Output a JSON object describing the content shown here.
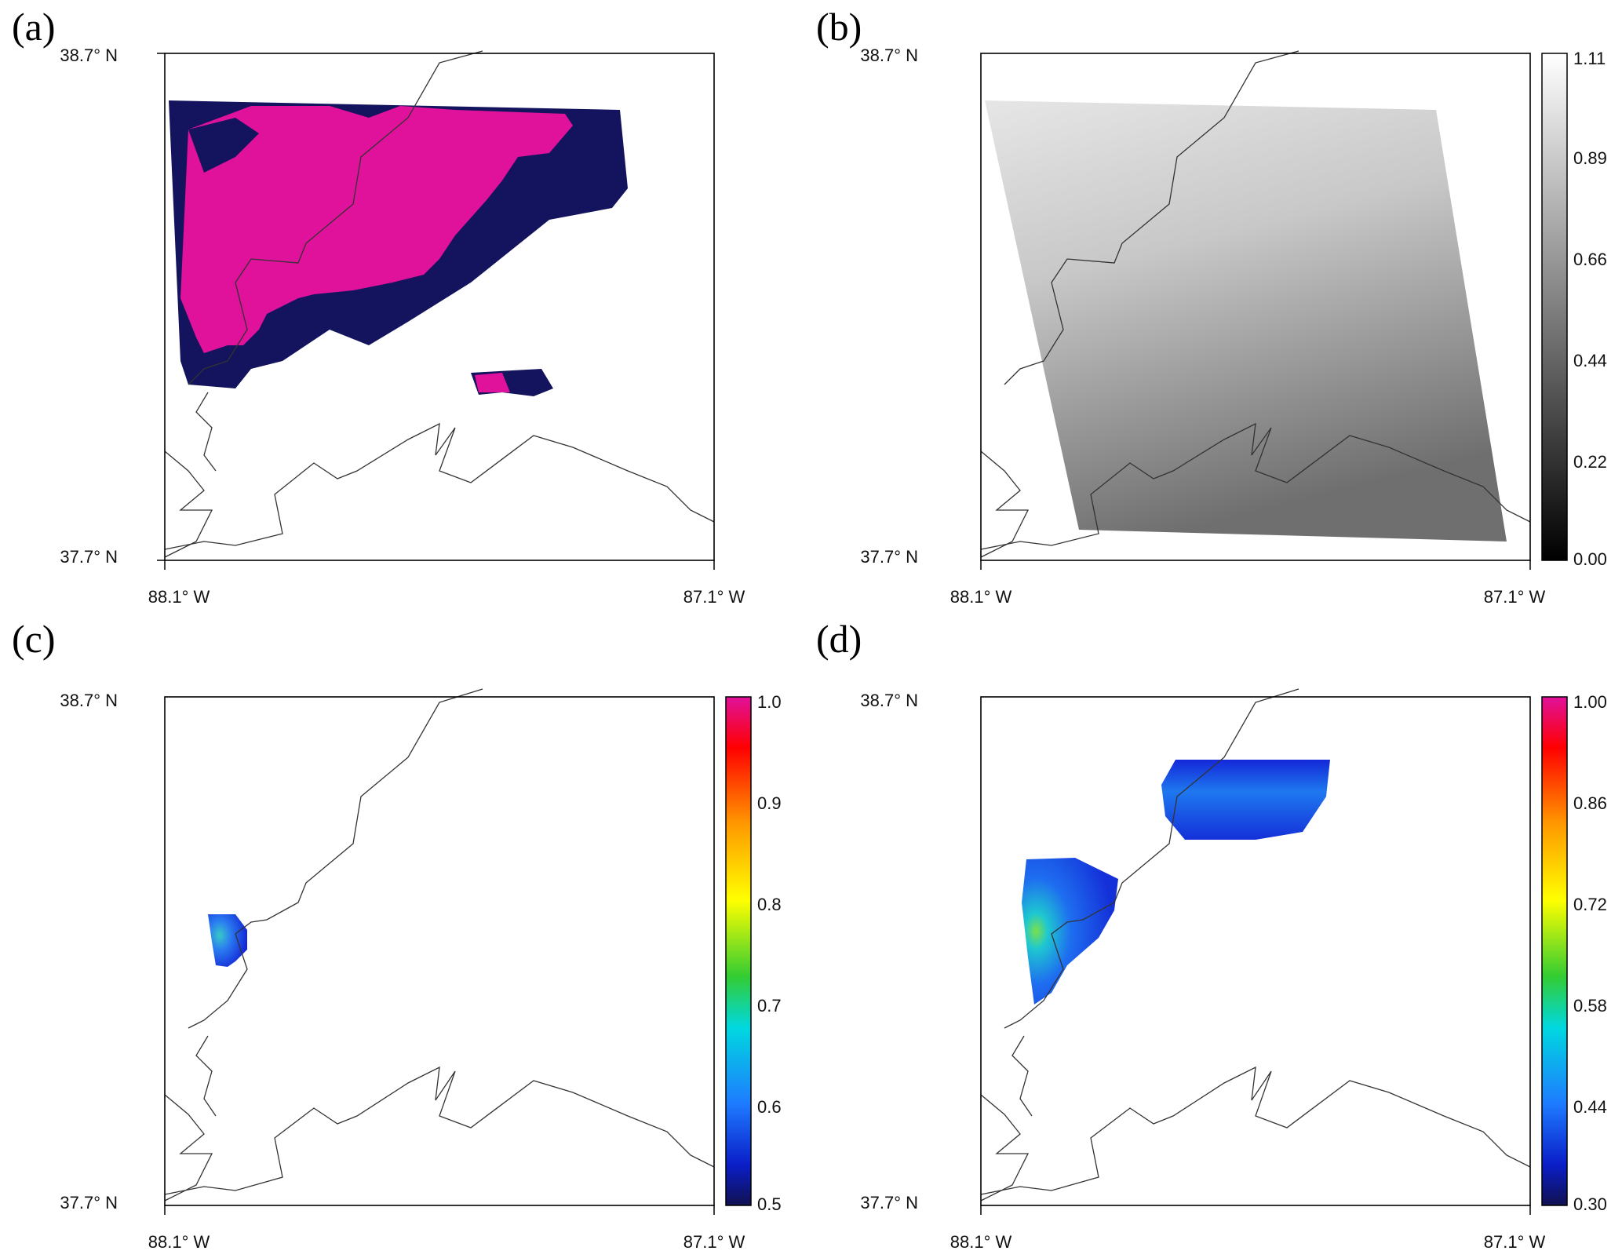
{
  "panels": [
    {
      "id": "a",
      "label": "(a)",
      "lat_top": "38.7° N",
      "lat_bottom": "37.7° N",
      "lon_left": "88.1° W",
      "lon_right": "87.1° W",
      "colorbar": null
    },
    {
      "id": "b",
      "label": "(b)",
      "lat_top": "38.7° N",
      "lat_bottom": "37.7° N",
      "lon_left": "88.1° W",
      "lon_right": "87.1° W",
      "colorbar": {
        "type": "grayscale",
        "ticks": [
          "1.11",
          "0.89",
          "0.66",
          "0.44",
          "0.22",
          "0.00"
        ]
      }
    },
    {
      "id": "c",
      "label": "(c)",
      "lat_top": "38.7° N",
      "lat_bottom": "37.7° N",
      "lon_left": "88.1° W",
      "lon_right": "87.1° W",
      "colorbar": {
        "type": "rainbow",
        "ticks": [
          "1.0",
          "0.9",
          "0.8",
          "0.7",
          "0.6",
          "0.5"
        ]
      }
    },
    {
      "id": "d",
      "label": "(d)",
      "lat_top": "38.7° N",
      "lat_bottom": "37.7° N",
      "lon_left": "88.1° W",
      "lon_right": "87.1° W",
      "colorbar": {
        "type": "rainbow",
        "ticks": [
          "1.00",
          "0.86",
          "0.72",
          "0.58",
          "0.44",
          "0.30"
        ]
      }
    }
  ],
  "colors": {
    "class_magenta": "#e0119b",
    "class_navy": "#14145e",
    "border": "#333333"
  }
}
